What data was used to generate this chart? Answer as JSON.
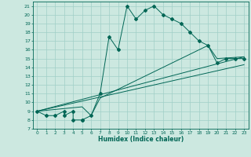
{
  "xlabel": "Humidex (Indice chaleur)",
  "bg_color": "#cce8e0",
  "grid_color": "#a0cfc7",
  "line_color": "#006655",
  "xlim": [
    -0.5,
    23.5
  ],
  "ylim": [
    7,
    21.5
  ],
  "yticks": [
    7,
    8,
    9,
    10,
    11,
    12,
    13,
    14,
    15,
    16,
    17,
    18,
    19,
    20,
    21
  ],
  "xticks": [
    0,
    1,
    2,
    3,
    4,
    5,
    6,
    7,
    8,
    9,
    10,
    11,
    12,
    13,
    14,
    15,
    16,
    17,
    18,
    19,
    20,
    21,
    22,
    23
  ],
  "line1_x": [
    0,
    1,
    2,
    3,
    3,
    4,
    4,
    5,
    5,
    6,
    7,
    8,
    9,
    10,
    11,
    12,
    13,
    14,
    15,
    16,
    17,
    18,
    19,
    20,
    21,
    22,
    23
  ],
  "line1_y": [
    9,
    8.5,
    8.5,
    9,
    8.5,
    9,
    8,
    8,
    8,
    8.5,
    11,
    17.5,
    16,
    21,
    19.5,
    20.5,
    21,
    20,
    19.5,
    19,
    18,
    17,
    16.5,
    14.5,
    15,
    15,
    15
  ],
  "line2_x": [
    0,
    23
  ],
  "line2_y": [
    9.0,
    15.2
  ],
  "line3_x": [
    0,
    23
  ],
  "line3_y": [
    9.0,
    14.3
  ],
  "line4_x": [
    0,
    5,
    6,
    7,
    19,
    20,
    23
  ],
  "line4_y": [
    9.0,
    9.5,
    8.5,
    10.5,
    16.5,
    15.0,
    15.2
  ]
}
